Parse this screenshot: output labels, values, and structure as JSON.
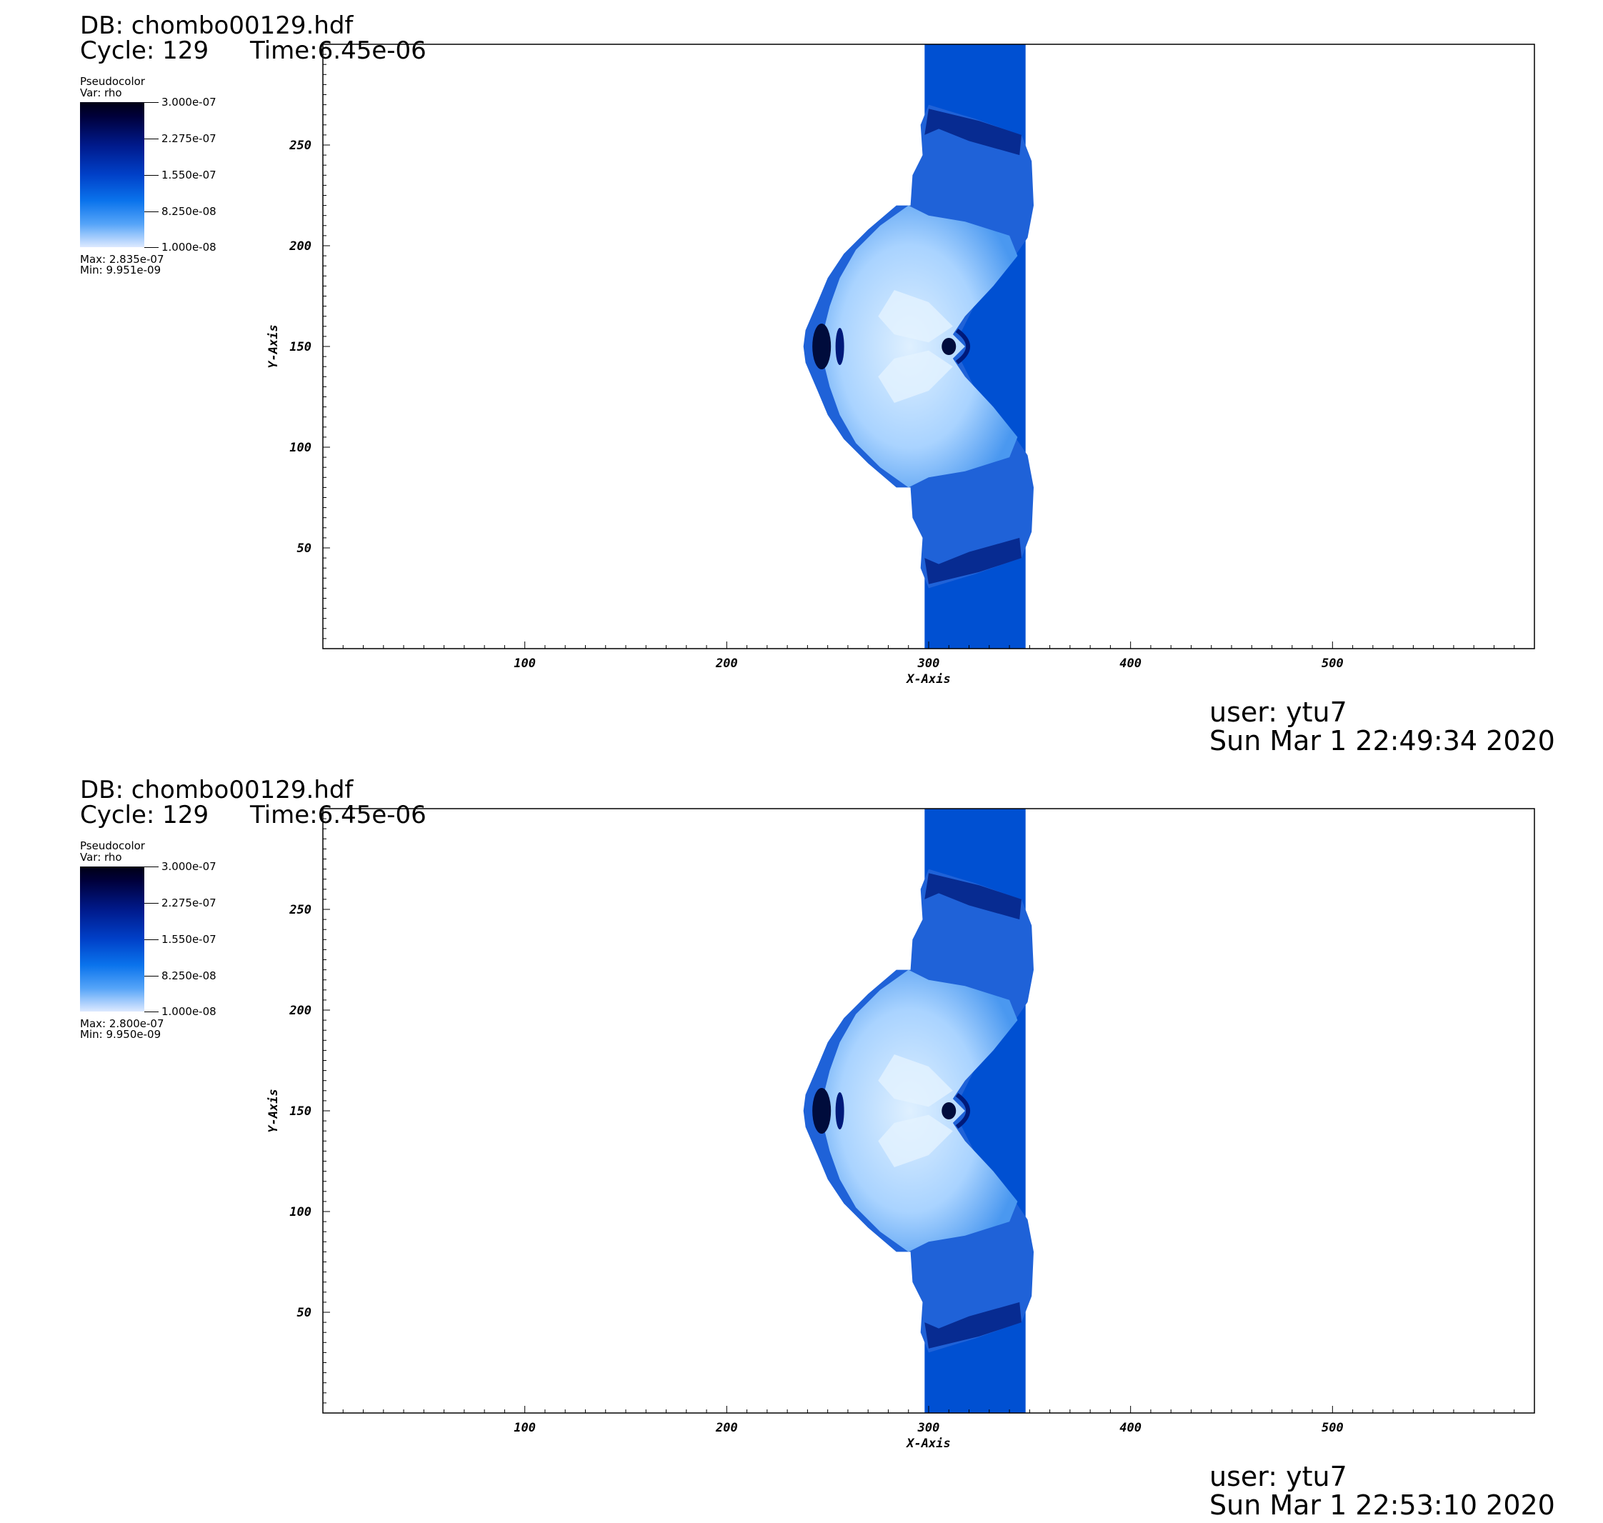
{
  "panels": [
    {
      "header": {
        "db": "DB: chombo00129.hdf",
        "cycle": "Cycle: 129",
        "time": "Time:6.45e-06"
      },
      "legend": {
        "title": "Pseudocolor",
        "var": "Var: rho",
        "ticks": [
          "3.000e-07",
          "2.275e-07",
          "1.550e-07",
          "8.250e-08",
          "1.000e-08"
        ],
        "max": "Max:  2.835e-07",
        "min": "Min:  9.951e-09"
      },
      "footer": {
        "user": "user: ytu7",
        "date": "Sun Mar  1 22:49:34 2020"
      }
    },
    {
      "header": {
        "db": "DB: chombo00129.hdf",
        "cycle": "Cycle: 129",
        "time": "Time:6.45e-06"
      },
      "legend": {
        "title": "Pseudocolor",
        "var": "Var: rho",
        "ticks": [
          "3.000e-07",
          "2.275e-07",
          "1.550e-07",
          "8.250e-08",
          "1.000e-08"
        ],
        "max": "Max:  2.800e-07",
        "min": "Min:  9.950e-09"
      },
      "footer": {
        "user": "user: ytu7",
        "date": "Sun Mar  1 22:53:10 2020"
      }
    }
  ],
  "chart_data": [
    {
      "type": "heatmap",
      "variable": "rho",
      "xlabel": "X-Axis",
      "ylabel": "Y-Axis",
      "xlim": [
        0,
        600
      ],
      "ylim": [
        0,
        300
      ],
      "x_ticks": [
        "100",
        "200",
        "300",
        "400",
        "500"
      ],
      "y_ticks": [
        "50",
        "100",
        "150",
        "200",
        "250"
      ],
      "colorbar": {
        "min": 1e-08,
        "max": 3e-07,
        "data_min": 9.951e-09,
        "data_max": 2.835e-07
      },
      "colors": {
        "band": "#0050d2",
        "dark": "#001a7a",
        "light": "#a9d3ff"
      }
    },
    {
      "type": "heatmap",
      "variable": "rho",
      "xlabel": "X-Axis",
      "ylabel": "Y-Axis",
      "xlim": [
        0,
        600
      ],
      "ylim": [
        0,
        300
      ],
      "x_ticks": [
        "100",
        "200",
        "300",
        "400",
        "500"
      ],
      "y_ticks": [
        "50",
        "100",
        "150",
        "200",
        "250"
      ],
      "colorbar": {
        "min": 1e-08,
        "max": 3e-07,
        "data_min": 9.95e-09,
        "data_max": 2.8e-07
      },
      "colors": {
        "band": "#0050d2",
        "dark": "#001a7a",
        "light": "#a9d3ff"
      }
    }
  ]
}
